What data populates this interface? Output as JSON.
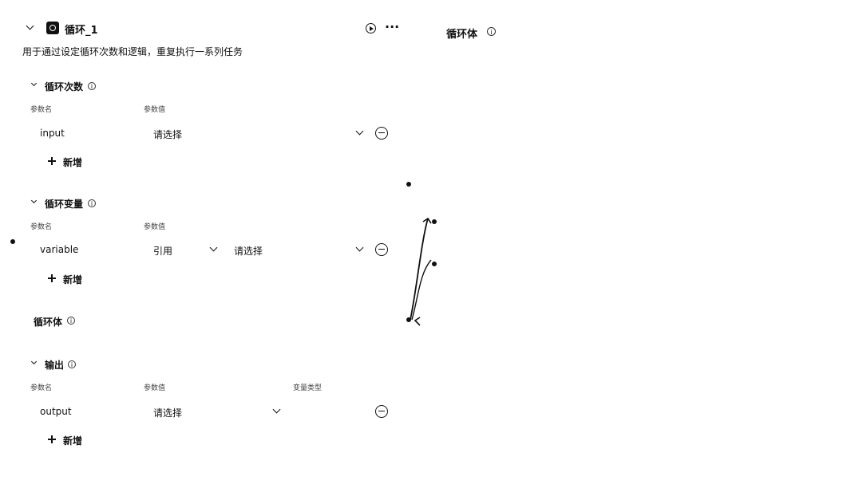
{
  "node": {
    "title": "循环_1",
    "description": "用于通过设定循环次数和逻辑，重复执行一系列任务",
    "more_label": "···"
  },
  "sections": {
    "loop_count": {
      "title": "循环次数",
      "col_param_name": "参数名",
      "col_param_value": "参数值",
      "row": {
        "name": "input",
        "value_placeholder": "请选择"
      },
      "add_label": "新增"
    },
    "loop_vars": {
      "title": "循环变量",
      "col_param_name": "参数名",
      "col_param_value": "参数值",
      "row": {
        "name": "variable",
        "ref_label": "引用",
        "value_placeholder": "请选择"
      },
      "add_label": "新增"
    },
    "loop_body": {
      "title": "循环体"
    },
    "output": {
      "title": "输出",
      "col_param_name": "参数名",
      "col_param_value": "参数值",
      "col_variable_type": "变量类型",
      "row": {
        "name": "output",
        "value_placeholder": "请选择"
      },
      "add_label": "新增"
    }
  },
  "right_panel": {
    "title": "循环体"
  },
  "icons": {
    "collapse": "chevron-down-icon",
    "logo": "loop-icon",
    "run": "play-circle-icon",
    "info": "info-icon",
    "remove": "minus-circle-icon",
    "add": "plus-icon"
  }
}
